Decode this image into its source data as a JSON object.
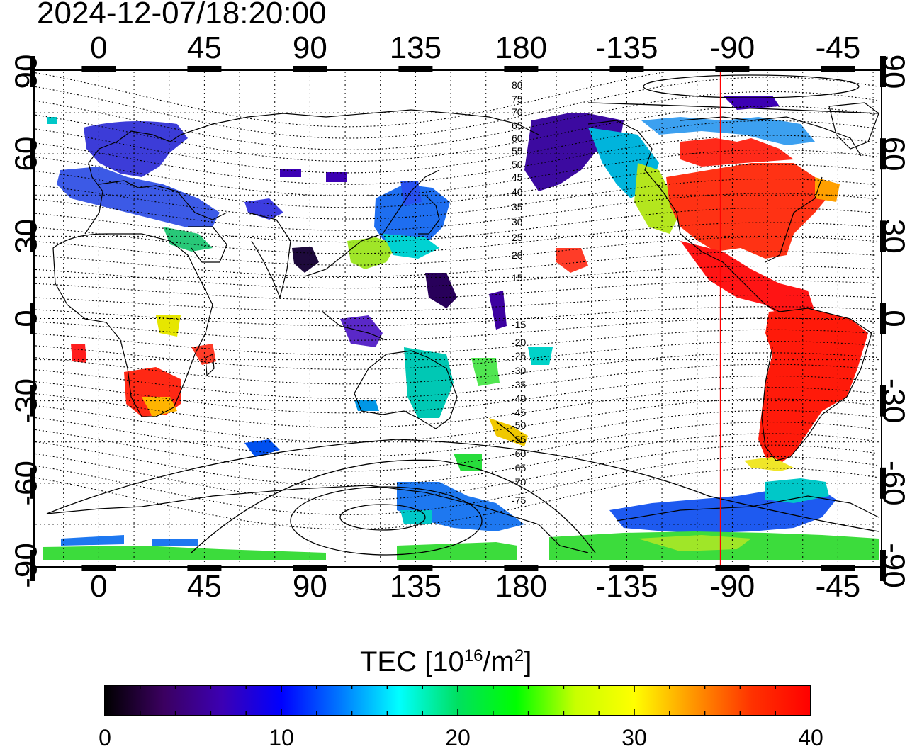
{
  "timestamp": "2024-12-07/18:20:00",
  "map": {
    "lon_ticks": [
      "0",
      "45",
      "90",
      "135",
      "180",
      "-135",
      "-90",
      "-45"
    ],
    "lat_ticks": [
      "90",
      "60",
      "30",
      "0",
      "-30",
      "-60",
      "-90"
    ],
    "contour_labels": [
      "80",
      "75",
      "70",
      "65",
      "60",
      "55",
      "50",
      "45",
      "40",
      "35",
      "30",
      "25",
      "20",
      "15",
      "-15",
      "-20",
      "-25",
      "-30",
      "-35",
      "-40",
      "-45",
      "-50",
      "-55",
      "-60",
      "-65",
      "-70",
      "-75"
    ],
    "marker_longitude": -95,
    "marker_color": "#ff0000"
  },
  "colorbar": {
    "title_prefix": "TEC  [10",
    "title_exp1": "16",
    "title_mid": "/m",
    "title_exp2": "2",
    "title_suffix": "]",
    "min": 0,
    "max": 40,
    "tick_labels": [
      "0",
      "10",
      "20",
      "30",
      "40"
    ],
    "colors": [
      "#000000",
      "#3b0060",
      "#3c00b4",
      "#0000ff",
      "#0078ff",
      "#00ffff",
      "#00e060",
      "#00ff00",
      "#c8ff00",
      "#ffff00",
      "#ff9600",
      "#ff3200",
      "#ff0000"
    ]
  }
}
